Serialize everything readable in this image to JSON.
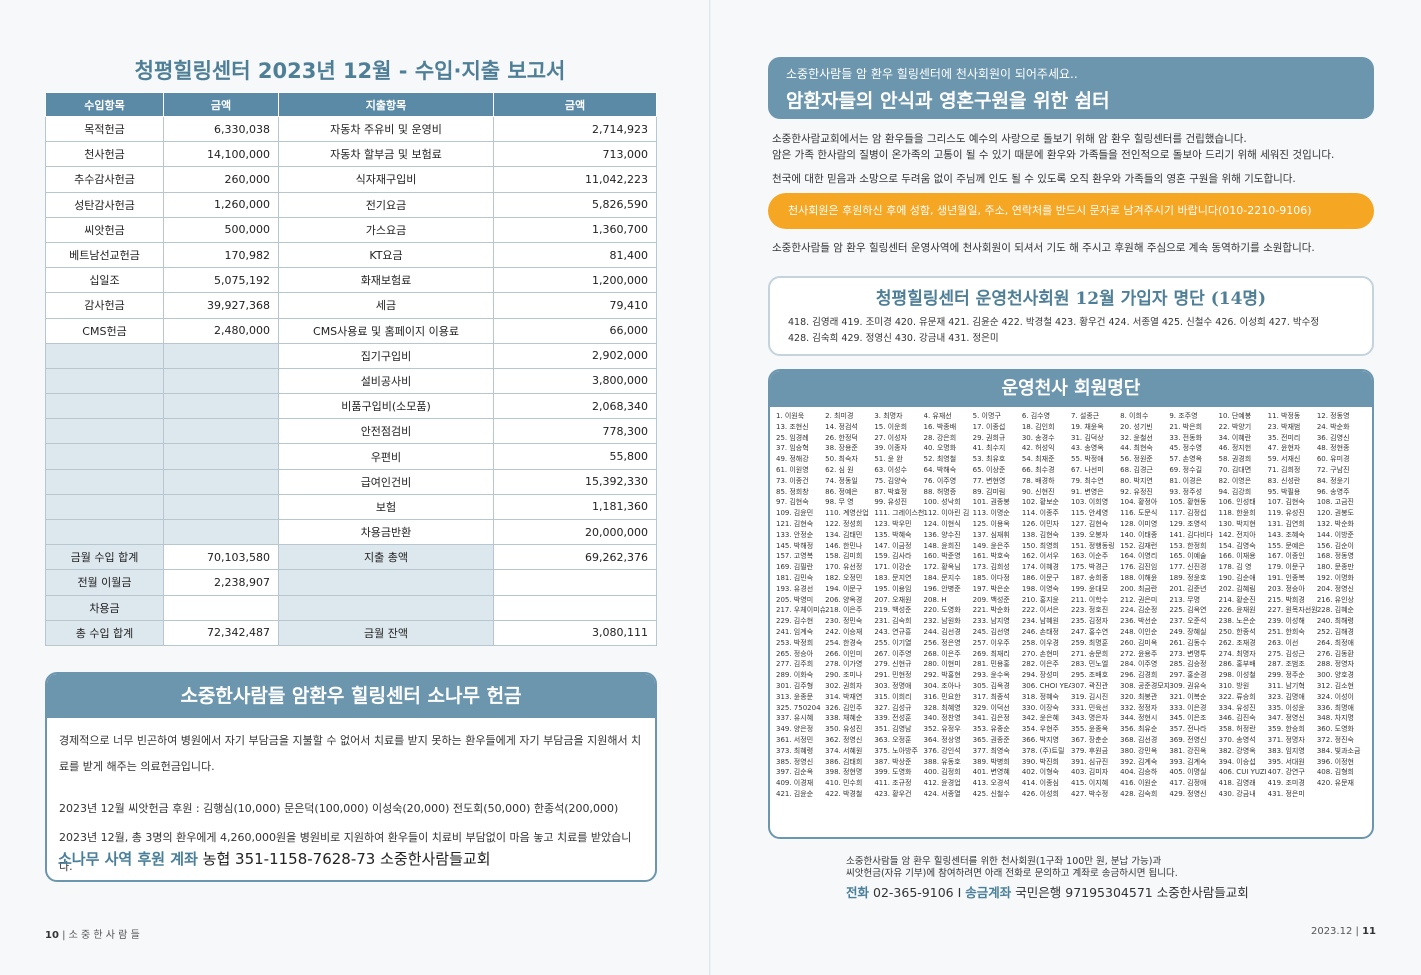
{
  "left": {
    "report_title": "청평힐링센터 2023년 12월 - 수입·지출 보고서",
    "headers": [
      "수입항목",
      "금액",
      "지출항목",
      "금액"
    ],
    "rows": [
      [
        "목적헌금",
        "6,330,038",
        "자동차 주유비 및 운영비",
        "2,714,923"
      ],
      [
        "천사헌금",
        "14,100,000",
        "자동차 할부금 및 보험료",
        "713,000"
      ],
      [
        "추수감사헌금",
        "260,000",
        "식자재구입비",
        "11,042,223"
      ],
      [
        "성탄감사헌금",
        "1,260,000",
        "전기요금",
        "5,826,590"
      ],
      [
        "씨앗헌금",
        "500,000",
        "가스요금",
        "1,360,700"
      ],
      [
        "베트남선교헌금",
        "170,982",
        "KT요금",
        "81,400"
      ],
      [
        "십일조",
        "5,075,192",
        "화재보험료",
        "1,200,000"
      ],
      [
        "감사헌금",
        "39,927,368",
        "세금",
        "79,410"
      ],
      [
        "CMS헌금",
        "2,480,000",
        "CMS사용료 및 홈페이지 이용료",
        "66,000"
      ],
      [
        "",
        "",
        "집기구입비",
        "2,902,000"
      ],
      [
        "",
        "",
        "설비공사비",
        "3,800,000"
      ],
      [
        "",
        "",
        "비품구입비(소모품)",
        "2,068,340"
      ],
      [
        "",
        "",
        "안전점검비",
        "778,300"
      ],
      [
        "",
        "",
        "우편비",
        "55,800"
      ],
      [
        "",
        "",
        "급여인건비",
        "15,392,330"
      ],
      [
        "",
        "",
        "보험",
        "1,181,360"
      ],
      [
        "",
        "",
        "차용금반환",
        "20,000,000"
      ]
    ],
    "summary": [
      [
        "금월 수입 합계",
        "70,103,580",
        "지출 총액",
        "69,262,376"
      ],
      [
        "전월 이월금",
        "2,238,907",
        "",
        ""
      ],
      [
        "차용금",
        "",
        "",
        ""
      ],
      [
        "총 수입 합계",
        "72,342,487",
        "금월 잔액",
        "3,080,111"
      ]
    ],
    "pine": {
      "title": "소중한사람들 암환우 힐링센터 소나무 헌금",
      "desc": "경제적으로 너무 빈곤하여 병원에서 자기 부담금을 지불할 수 없어서 치료를 받지 못하는 환우들에게 자기 부담금을 지원해서 치료를 받게 해주는 의료헌금입니다.",
      "line1": "2023년 12월 씨앗헌금 후원 : 김행심(10,000)  문은덕(100,000)  이성숙(20,000)  전도회(50,000)  한종석(200,000)",
      "line2": "2023년 12월, 총 3명의 환우에게 4,260,000원을 병원비로 지원하여 환우들이 치료비 부담없이 마음 놓고 치료를 받았습니다.",
      "account_label": "소나무 사역 후원 계좌",
      "account_value": "농협 351-1158-7628-73 소중한사람들교회"
    },
    "footer_page": "10",
    "footer_title": "소 중 한 사 람 들"
  },
  "right": {
    "hero_sub": "소중한사람들 암 환우 힐링센터에 천사회원이 되어주세요..",
    "hero_main": "암환자들의 안식과 영혼구원을 위한 쉼터",
    "intro1": "소중한사람교회에서는 암 환우들을 그리스도 예수의 사랑으로 돌보기 위해 암 환우 힐링센터를 건립했습니다.",
    "intro2": "암은 가족 한사람의 질병이 온가족의 고통이 될 수 있기 때문에 환우와 가족들을 전인적으로 돌보아 드리기 위해 세워진 것입니다.",
    "intro3": "천국에 대한 믿음과 소망으로 두려움 없이 주님께 인도 될 수 있도록 오직 환우와 가족들의 영혼 구원을 위해 기도합니다.",
    "orange": "천사회원은 후원하신 후에 성함, 생년월일, 주소, 연락처를 반드시 문자로 남겨주시기 바랍니다(010-2210-9106)",
    "pray": "소중한사람들 암 환우 힐링센터 운영사역에 천사회원이 되셔서 기도 해 주시고 후원해 주심으로 계속 동역하기를 소원합니다.",
    "join_title": "청평힐링센터 운영천사회원 12월 가입자 명단 (14명)",
    "join_line1": "418. 김영래 419. 조미경 420. 유문재 421. 김윤순 422. 박경철 423. 황우건 424. 서종열 425. 신철수 426. 이성희 427. 박수정",
    "join_line2": "428. 김숙희 429. 정영신 430. 강금내 431. 정은미",
    "members_title": "운영천사 회원명단",
    "members": [
      "1. 이원욱",
      "2. 최미경",
      "3. 최명자",
      "4. 유재선",
      "5. 이명구",
      "6. 김수영",
      "7. 설종근",
      "8. 이희수",
      "9. 조주영",
      "10. 단예봉",
      "11. 박정동",
      "12. 정동영",
      "13. 조현신",
      "14. 정검석",
      "15. 이운희",
      "16. 박종배",
      "17. 이종섭",
      "18. 김인희",
      "19. 채윤옥",
      "20. 성기빈",
      "21. 박은희",
      "22. 박양기",
      "23. 박재범",
      "24. 박순화",
      "25. 임경례",
      "26. 한정덕",
      "27. 이성자",
      "28. 강은희",
      "29. 권희규",
      "30. 송경수",
      "31. 김덕상",
      "32. 윤철선",
      "33. 전동화",
      "34. 이혜란",
      "35. 전미리",
      "36. 김영신",
      "37. 임승혁",
      "38. 장용준",
      "39. 이종자",
      "40. 오명화",
      "41. 최수지",
      "42. 허성익",
      "43. 송영옥",
      "44. 최현숙",
      "45. 정수영",
      "46. 정지헌",
      "47. 윤현자",
      "48. 정현종",
      "49. 정해강",
      "50. 최숙자",
      "51. 윤 완",
      "52. 최영철",
      "53. 최유호",
      "54. 최재준",
      "55. 박정애",
      "56. 정원준",
      "57. 손영옥",
      "58. 권경희",
      "59. 서재신",
      "60. 유미경",
      "61. 이원영",
      "62. 심 원",
      "63. 이성수",
      "64. 박해숙",
      "65. 이상준",
      "66. 최수경",
      "67. 나선미",
      "68. 김경근",
      "69. 정수길",
      "70. 김대면",
      "71. 김희정",
      "72. 구남진",
      "73. 이종건",
      "74. 정동일",
      "75. 김양숙",
      "76. 이주영",
      "77. 변현영",
      "78. 배경하",
      "79. 최수연",
      "80. 박지연",
      "81. 이경은",
      "82. 이영은",
      "83. 신성란",
      "84. 정윤기",
      "85. 정희창",
      "86. 정예은",
      "87. 박효정",
      "88. 허명증",
      "89. 김미림",
      "90. 신현진",
      "91. 변영은",
      "92. 유정진",
      "93. 정주성",
      "94. 김강희",
      "95. 박필용",
      "96. 송영주",
      "97. 김현숙",
      "98. 무 영",
      "99. 유성진",
      "100. 성낙희",
      "101. 권종봉",
      "102. 황보순",
      "103. 이희영",
      "104. 황정아",
      "105. 황현동",
      "106. 인성태",
      "107. 김현숙",
      "108. 고금진",
      "109. 김윤민",
      "110. 계영산업",
      "111. 그레이스천",
      "112. 이아린 김",
      "113. 이명순",
      "114. 이종주",
      "115. 안세영",
      "116. 도문식",
      "117. 김정섭",
      "118. 한윤희",
      "119. 유성진",
      "120. 권봉도",
      "121. 김현숙",
      "122. 정성희",
      "123. 박우민",
      "124. 이현식",
      "125. 이용옥",
      "126. 이민자",
      "127. 김현숙",
      "128. 이미영",
      "129. 조영석",
      "130. 박지현",
      "131. 김연희",
      "132. 박순화",
      "133. 안정순",
      "134. 김태민",
      "135. 박혜숙",
      "136. 양수진",
      "137. 심재휘",
      "138. 김현숙",
      "139. 오봉자",
      "140. 이태종",
      "141. 김다비다",
      "142. 전지아",
      "143. 조혜숙",
      "144. 이방준",
      "145. 박해정",
      "146. 한민나",
      "147. 이금정",
      "148. 윤희진",
      "149. 윤은주",
      "150. 최영희",
      "151. 정행동링",
      "152. 김재런",
      "153. 한정희",
      "154. 김영숙",
      "155. 문예은",
      "156. 김순이",
      "157. 고영복",
      "158. 김미희",
      "159. 김사라",
      "160. 박준영",
      "161. 박호숙",
      "162. 이서우",
      "163. 이순주",
      "164. 이영리",
      "165. 이예술",
      "166. 이재용",
      "167. 이종인",
      "168. 정동영",
      "169. 김필란",
      "170. 유선정",
      "171. 이강순",
      "172. 황옥님",
      "173. 김희성",
      "174. 이혜경",
      "175. 박경근",
      "176. 김진임",
      "177. 신진경",
      "178. 김 영",
      "179. 이문구",
      "180. 문종만",
      "181. 김민숙",
      "182. 오정민",
      "183. 문지연",
      "184. 문지수",
      "185. 이다정",
      "186. 이문구",
      "187. 송희종",
      "188. 이해윤",
      "189. 정윤호",
      "190. 김순애",
      "191. 인종복",
      "192. 이명화",
      "193. 유경선",
      "194. 이문구",
      "195. 이용임",
      "196. 안병준",
      "197. 박은순",
      "198. 이영숙",
      "199. 윤대모",
      "200. 최금란",
      "201. 김준년",
      "202. 김혜림",
      "203. 정승아",
      "204. 정영신",
      "205. 박영미",
      "206. 양옥경",
      "207. 오재원",
      "208. H",
      "209. 백성준",
      "210. 홍지윤",
      "211. 이학수",
      "212. 권은미",
      "213. 무명",
      "214. 황순진",
      "215. 박희경",
      "216. 유인상",
      "217. 우체이미슈서",
      "218. 이은주",
      "219. 백성준",
      "220. 도영화",
      "221. 박순화",
      "222. 이서은",
      "223. 정호진",
      "224. 김순정",
      "225. 김옥연",
      "226. 윤재원",
      "227. 원목자선원재료",
      "228. 김혜순",
      "229. 김수현",
      "230. 정민숙",
      "231. 김숙희",
      "232. 남원화",
      "233. 남지영",
      "234. 남혜원",
      "235. 김정자",
      "236. 박선순",
      "237. 오준석",
      "238. 노은순",
      "239. 이성해",
      "240. 최해령",
      "241. 임계숙",
      "242. 이승재",
      "243. 연규흥",
      "244. 김선경",
      "245. 김선영",
      "246. 손태정",
      "247. 홍수연",
      "248. 이인순",
      "249. 장혜실",
      "250. 한종석",
      "251. 한희숙",
      "252. 김해경",
      "253. 박정희",
      "254. 한경숙",
      "255. 이기열",
      "256. 정은영",
      "257. 이우주",
      "258. 이우경",
      "259. 최명훈",
      "260. 김미옥",
      "261. 김동수",
      "262. 조재경",
      "263. 이선",
      "264. 최정애",
      "265. 정승아",
      "266. 이인미",
      "267. 이주영",
      "268. 이은주",
      "269. 최재리",
      "270. 손현미",
      "271. 송문희",
      "272. 윤용주",
      "273. 변명투",
      "274. 최명자",
      "275. 김성근",
      "276. 김동환",
      "277. 김주희",
      "278. 이가영",
      "279. 신현규",
      "280. 이현미",
      "281. 민용홍",
      "282. 이은주",
      "283. 민노엘",
      "284. 이주영",
      "285. 김승정",
      "286. 홍부배",
      "287. 조범조",
      "288. 정영자",
      "289. 이화숙",
      "290. 조미나",
      "291. 민현정",
      "292. 박홍현",
      "293. 윤수옥",
      "294. 장성미",
      "295. 조배호",
      "296. 김경희",
      "297. 홍순경",
      "298. 이성철",
      "299. 정주순",
      "300. 양호경",
      "301. 김주형",
      "302. 권희자",
      "303. 정명애",
      "304. 조아나",
      "305. 김옥경",
      "306. CHOI YEARIN",
      "307. 곽진관",
      "308. 공준경모자",
      "309. 권유숙",
      "310. 방원",
      "311. 남기혁",
      "312. 김소현",
      "313. 윤종문",
      "314. 박재연",
      "315. 이희리",
      "316. 민요한",
      "317. 최종석",
      "318. 정혜숙",
      "319. 김시진",
      "320. 최봉관",
      "321. 이복순",
      "322. 류승희",
      "323. 김명애",
      "324. 이성이",
      "325. 750204",
      "326. 김인주",
      "327. 김성규",
      "328. 최혜영",
      "329. 이덕선",
      "330. 이장숙",
      "331. 민육선",
      "332. 정정자",
      "333. 이은경",
      "334. 유성진",
      "335. 이성윤",
      "336. 최명애",
      "337. 유시혜",
      "338. 채혜순",
      "339. 전성훈",
      "340. 정찬영",
      "341. 김은정",
      "342. 윤은혜",
      "343. 명은자",
      "344. 정현시",
      "345. 이은조",
      "346. 김진숙",
      "347. 정영신",
      "348. 차지명",
      "349. 양은정",
      "350. 유성진",
      "351. 김영남",
      "352. 유정우",
      "353. 유종순",
      "354. 우현주",
      "355. 윤종옥",
      "356. 최유순",
      "357. 전나라",
      "358. 허정란",
      "359. 한승희",
      "360. 도영화",
      "361. 서정민",
      "362. 정영신",
      "363. 오정훈",
      "364. 정상영",
      "365. 권종준",
      "366. 박지영",
      "367. 장춘순",
      "368. 김선경",
      "369. 전영신",
      "370. 송영석",
      "371. 정명자",
      "372. 정진숙",
      "373. 최혜령",
      "374. 서혜원",
      "375. 노아방주",
      "376. 강인석",
      "377. 최영숙",
      "378. (주)트릴",
      "379. 후원금",
      "380. 강민옥",
      "381. 강진옥",
      "382. 강영옥",
      "383. 임지영",
      "384. 빛과소금",
      "385. 정영신",
      "386. 김태희",
      "387. 박상준",
      "388. 유동호",
      "389. 박병희",
      "390. 박진희",
      "391. 심규진",
      "392. 김계숙",
      "393. 김계숙",
      "394. 이승섭",
      "395. 서대원",
      "396. 이정현",
      "397. 김순옥",
      "398. 정현명",
      "399. 도영화",
      "400. 김정희",
      "401. 변영혜",
      "402. 이형숙",
      "403. 김미자",
      "404. 김승하",
      "405. 이명실",
      "406. CUI YUZI",
      "407. 강연구",
      "408. 김형희",
      "409. 이경재",
      "410. 민수희",
      "411. 조규정",
      "412. 윤경업",
      "413. 오경석",
      "414. 이종심",
      "415. 이지혜",
      "416. 이원순",
      "417. 김정애",
      "418. 김영래",
      "419. 조미경",
      "420. 유문재",
      "421. 김윤순",
      "422. 박경철",
      "423. 황우건",
      "424. 서종열",
      "425. 신철수",
      "426. 이성희",
      "427. 박수정",
      "428. 김숙희",
      "429. 정영신",
      "430. 강금내",
      "431. 정은미"
    ],
    "contact_line1": "소중한사람들 암 환우 힐링센터를 위한 천사회원(1구좌 100만 원, 분납 가능)과",
    "contact_line2": "씨앗헌금(자유 기부)에 참여하려면 아래 전화로 문의하고 계좌로 송금하시면 됩니다.",
    "phone_label": "전화",
    "phone": "02-365-9106",
    "sep": "I",
    "account_label": "송금계좌",
    "account": "국민은행 97195304571 소중한사람들교회",
    "footer_date": "2023.12",
    "footer_page": "11"
  }
}
